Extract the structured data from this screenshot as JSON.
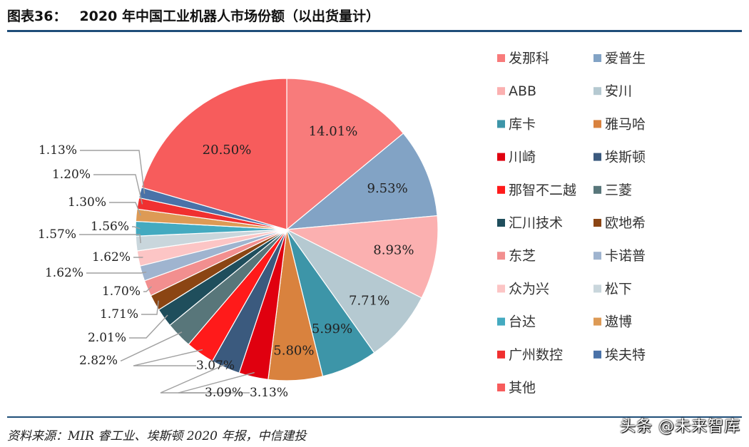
{
  "figure_label": "图表36：",
  "figure_title": "2020 年中国工业机器人市场份额（以出货量计）",
  "source_text": "资料来源：MIR 睿工业、埃斯顿 2020 年报，中信建投",
  "watermark_text": "头条 @未来智库",
  "chart_data": {
    "type": "pie",
    "legend_position": "right",
    "slices": [
      {
        "label": "发那科",
        "value": 14.01,
        "value_label": "14.01%",
        "color": "#f87b7b"
      },
      {
        "label": "爱普生",
        "value": 9.53,
        "value_label": "9.53%",
        "color": "#82a3c5"
      },
      {
        "label": "ABB",
        "value": 8.93,
        "value_label": "8.93%",
        "color": "#fbb0b0"
      },
      {
        "label": "安川",
        "value": 7.71,
        "value_label": "7.71%",
        "color": "#b5c9d1"
      },
      {
        "label": "库卡",
        "value": 5.99,
        "value_label": "5.99%",
        "color": "#3d95a8"
      },
      {
        "label": "雅马哈",
        "value": 5.8,
        "value_label": "5.80%",
        "color": "#d9823e"
      },
      {
        "label": "川崎",
        "value": 3.13,
        "value_label": "3.13%",
        "color": "#e0000f"
      },
      {
        "label": "埃斯顿",
        "value": 3.09,
        "value_label": "3.09%",
        "color": "#3b5a7e"
      },
      {
        "label": "那智不二越",
        "value": 3.07,
        "value_label": "3.07%",
        "color": "#ff1a1a"
      },
      {
        "label": "三菱",
        "value": 2.82,
        "value_label": "2.82%",
        "color": "#58767a"
      },
      {
        "label": "汇川技术",
        "value": 2.01,
        "value_label": "2.01%",
        "color": "#1f4e5c"
      },
      {
        "label": "欧地希",
        "value": 1.71,
        "value_label": "1.71%",
        "color": "#8b4513"
      },
      {
        "label": "东芝",
        "value": 1.7,
        "value_label": "1.70%",
        "color": "#f28f8f"
      },
      {
        "label": "卡诺普",
        "value": 1.62,
        "value_label": "1.62%",
        "color": "#9fb4cf"
      },
      {
        "label": "众为兴",
        "value": 1.62,
        "value_label": "1.62%",
        "color": "#fcc5c5"
      },
      {
        "label": "松下",
        "value": 1.57,
        "value_label": "1.57%",
        "color": "#c9d6dc"
      },
      {
        "label": "台达",
        "value": 1.56,
        "value_label": "1.56%",
        "color": "#44aac0"
      },
      {
        "label": "遨博",
        "value": 1.3,
        "value_label": "1.30%",
        "color": "#dd9a55"
      },
      {
        "label": "广州数控",
        "value": 1.2,
        "value_label": "1.20%",
        "color": "#f03030"
      },
      {
        "label": "埃夫特",
        "value": 1.13,
        "value_label": "1.13%",
        "color": "#4a72a8"
      },
      {
        "label": "其他",
        "value": 20.5,
        "value_label": "20.50%",
        "color": "#f75c5c"
      }
    ]
  }
}
